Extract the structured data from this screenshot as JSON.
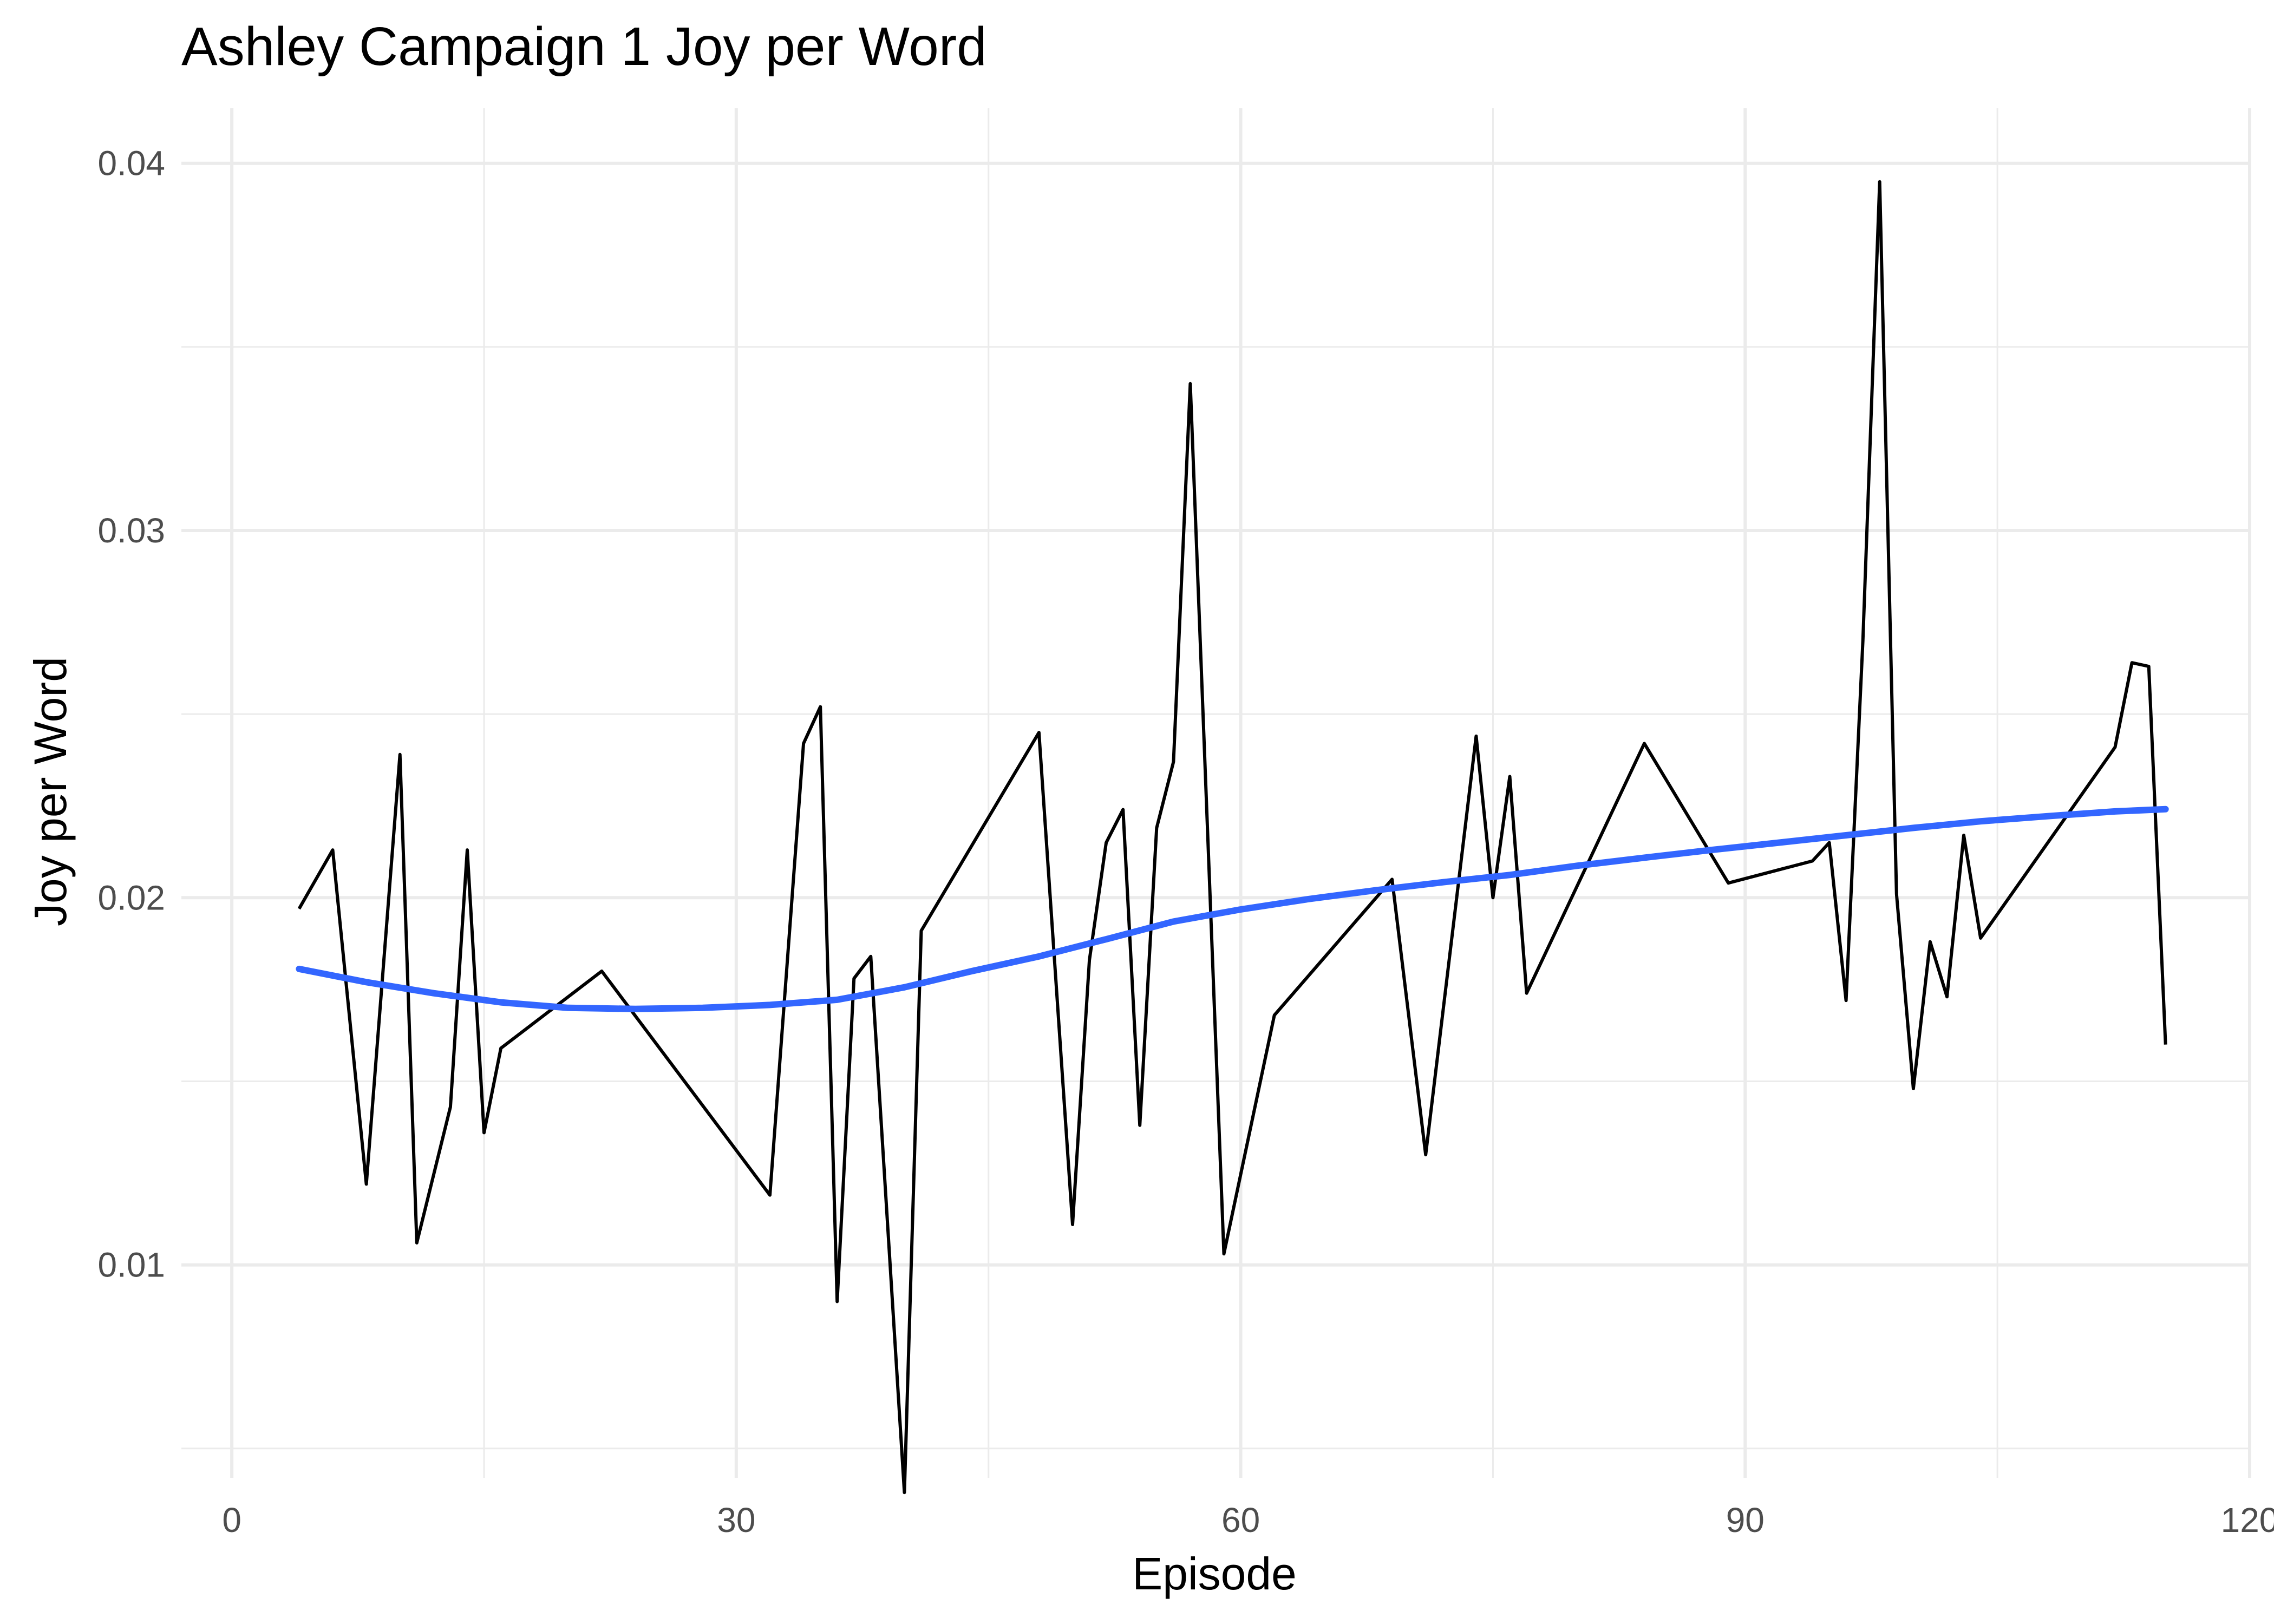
{
  "chart_data": {
    "type": "line",
    "title": "Ashley Campaign 1 Joy per Word",
    "xlabel": "Episode",
    "ylabel": "Joy per Word",
    "xlim": [
      -3,
      120
    ],
    "ylim": [
      0.0042,
      0.0415
    ],
    "x_ticks": [
      0,
      30,
      60,
      90,
      120
    ],
    "x_tick_labels": [
      "0",
      "30",
      "60",
      "90",
      "120"
    ],
    "x_minor_ticks": [
      15,
      45,
      75,
      105
    ],
    "y_ticks": [
      0.01,
      0.02,
      0.03,
      0.04
    ],
    "y_tick_labels": [
      "0.01",
      "0.02",
      "0.03",
      "0.04"
    ],
    "y_minor_ticks": [
      0.005,
      0.015,
      0.025,
      0.035
    ],
    "grid": true,
    "series": [
      {
        "color": "#000000",
        "x": [
          4,
          6,
          8,
          10,
          11,
          13,
          14,
          15,
          16,
          22,
          32,
          34,
          35,
          36,
          37,
          38,
          40,
          41,
          48,
          50,
          51,
          52,
          53,
          54,
          55,
          56,
          57,
          59,
          62,
          69,
          71,
          74,
          75,
          76,
          77,
          84,
          89,
          94,
          95,
          96,
          97,
          98,
          99,
          100,
          101,
          102,
          103,
          104,
          112,
          113,
          114,
          115
        ],
        "values": [
          0.0197,
          0.0213,
          0.0122,
          0.0239,
          0.0106,
          0.0143,
          0.0213,
          0.0136,
          0.0159,
          0.018,
          0.0119,
          0.0242,
          0.0252,
          0.009,
          0.0178,
          0.0184,
          0.0038,
          0.0191,
          0.0245,
          0.0111,
          0.0183,
          0.0215,
          0.0224,
          0.0138,
          0.0219,
          0.0237,
          0.034,
          0.0103,
          0.0168,
          0.0205,
          0.013,
          0.0244,
          0.02,
          0.0233,
          0.0174,
          0.0242,
          0.0204,
          0.021,
          0.0215,
          0.0172,
          0.027,
          0.0395,
          0.0201,
          0.0148,
          0.0188,
          0.0173,
          0.0217,
          0.0189,
          0.0241,
          0.0264,
          0.0263,
          0.016
        ]
      },
      {
        "color": "#3366FF",
        "x": [
          4,
          8,
          12,
          16,
          20,
          24,
          28,
          32,
          36,
          40,
          44,
          48,
          52,
          56,
          60,
          64,
          68,
          72,
          76,
          80,
          84,
          88,
          92,
          96,
          100,
          104,
          108,
          112,
          115
        ],
        "values": [
          0.01806,
          0.0177,
          0.0174,
          0.01715,
          0.017,
          0.01697,
          0.017,
          0.01708,
          0.01722,
          0.01756,
          0.018,
          0.0184,
          0.01887,
          0.01935,
          0.01968,
          0.01996,
          0.0202,
          0.02042,
          0.02062,
          0.02087,
          0.02109,
          0.0213,
          0.0215,
          0.0217,
          0.0219,
          0.02208,
          0.02222,
          0.02235,
          0.02241
        ]
      }
    ]
  }
}
